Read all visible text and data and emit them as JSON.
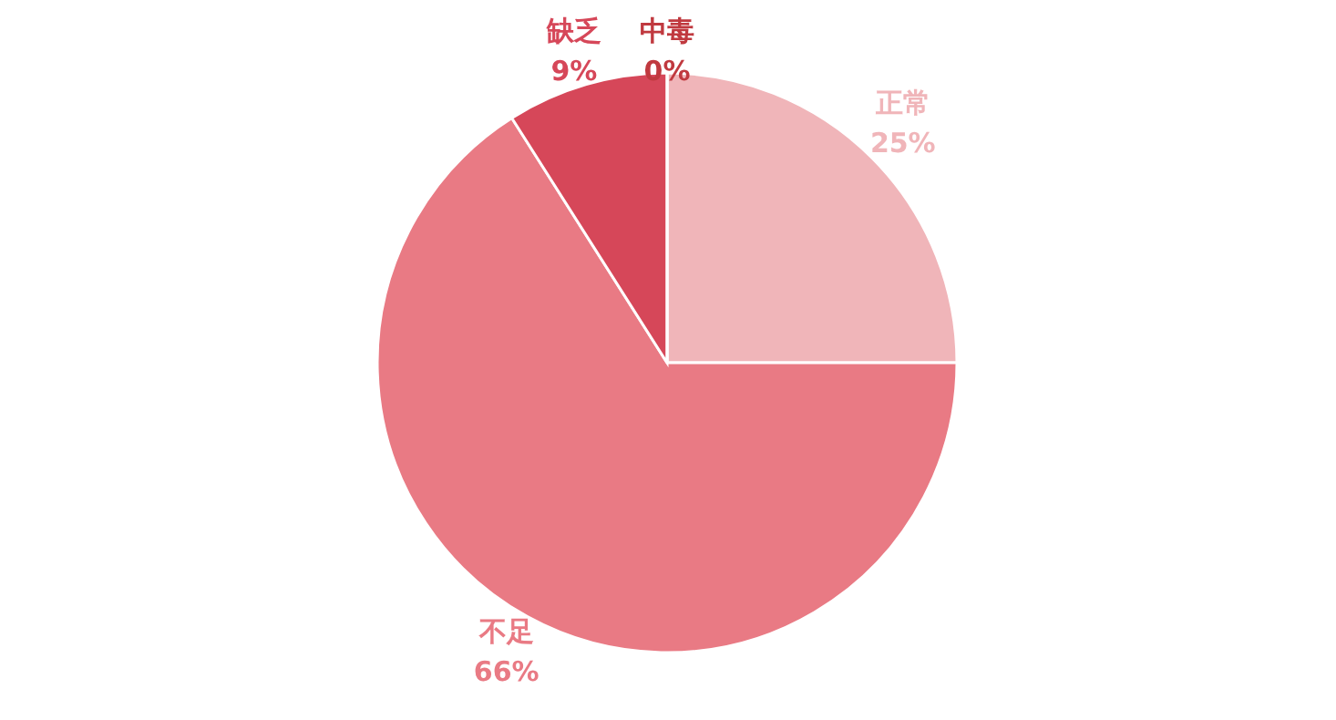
{
  "chart_data": {
    "type": "pie",
    "categories": [
      "正常",
      "不足",
      "缺乏",
      "中毒"
    ],
    "values": [
      25,
      66,
      9,
      0
    ],
    "colors": [
      "#f0b5b9",
      "#e97a84",
      "#d64759",
      "#c0393f"
    ],
    "value_labels": [
      "25%",
      "66%",
      "9%",
      "0%"
    ]
  }
}
